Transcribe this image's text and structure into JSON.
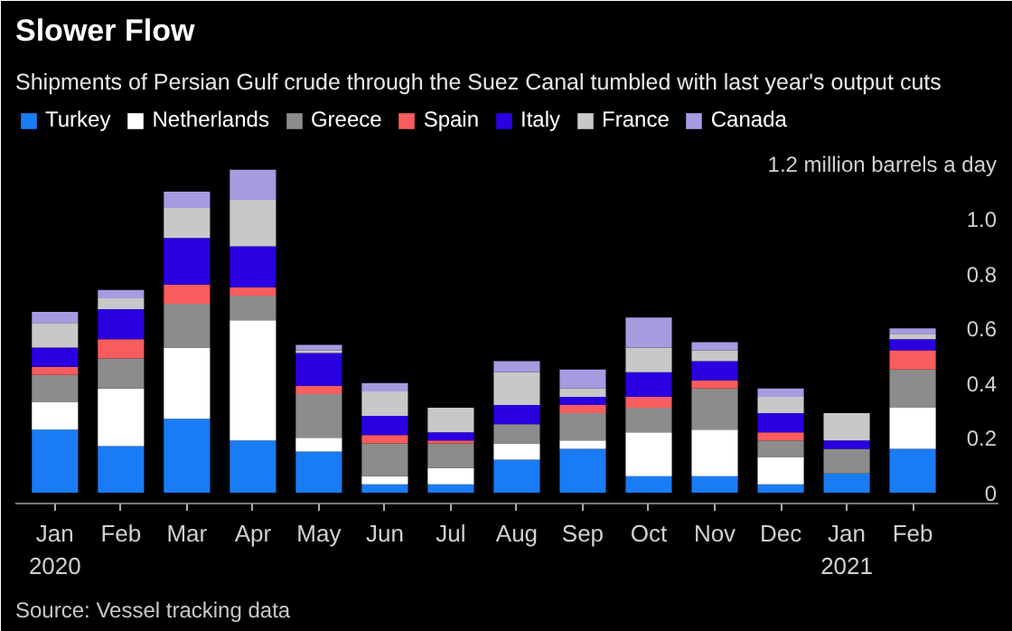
{
  "chart_data": {
    "type": "bar",
    "stacked": true,
    "title": "Slower Flow",
    "subtitle": "Shipments of Persian Gulf crude through the Suez Canal tumbled with last year's output cuts",
    "categories": [
      "Jan\n2020",
      "Feb",
      "Mar",
      "Apr",
      "May",
      "Jun",
      "Jul",
      "Aug",
      "Sep",
      "Oct",
      "Nov",
      "Dec",
      "Jan\n2021",
      "Feb"
    ],
    "series": [
      {
        "name": "Turkey",
        "color": "#1a7cf5",
        "values": [
          0.23,
          0.17,
          0.27,
          0.19,
          0.15,
          0.03,
          0.03,
          0.12,
          0.16,
          0.06,
          0.06,
          0.03,
          0.07,
          0.16
        ]
      },
      {
        "name": "Netherlands",
        "color": "#ffffff",
        "values": [
          0.1,
          0.21,
          0.26,
          0.44,
          0.05,
          0.03,
          0.06,
          0.06,
          0.03,
          0.16,
          0.17,
          0.1,
          0,
          0.15
        ]
      },
      {
        "name": "Greece",
        "color": "#8c8c8c",
        "values": [
          0.1,
          0.11,
          0.16,
          0.09,
          0.16,
          0.12,
          0.09,
          0.07,
          0.1,
          0.09,
          0.15,
          0.06,
          0.09,
          0.14
        ]
      },
      {
        "name": "Spain",
        "color": "#f95c5c",
        "values": [
          0.03,
          0.07,
          0.07,
          0.03,
          0.03,
          0.03,
          0.01,
          0,
          0.03,
          0.04,
          0.03,
          0.03,
          0,
          0.07
        ]
      },
      {
        "name": "Italy",
        "color": "#2a00e0",
        "values": [
          0.07,
          0.11,
          0.17,
          0.15,
          0.12,
          0.07,
          0.03,
          0.07,
          0.03,
          0.09,
          0.07,
          0.07,
          0.03,
          0.04
        ]
      },
      {
        "name": "France",
        "color": "#c8c8c8",
        "values": [
          0.09,
          0.04,
          0.11,
          0.17,
          0.01,
          0.09,
          0.09,
          0.12,
          0.03,
          0.09,
          0.04,
          0.06,
          0.1,
          0.02
        ]
      },
      {
        "name": "Canada",
        "color": "#a59be0",
        "values": [
          0.04,
          0.03,
          0.06,
          0.11,
          0.02,
          0.03,
          0,
          0.04,
          0.07,
          0.11,
          0.03,
          0.03,
          0,
          0.02
        ]
      }
    ],
    "ylim": [
      -0.04,
      1.42
    ],
    "yticks": [
      0,
      0.2,
      0.4,
      0.6,
      0.8,
      {
        "value": 1.0,
        "label": "1.0"
      },
      {
        "value": 1.2,
        "label": "1.2 million barrels a day"
      }
    ],
    "legend": "top",
    "grid": false,
    "annotations": [
      "Source: Vessel tracking data"
    ]
  }
}
